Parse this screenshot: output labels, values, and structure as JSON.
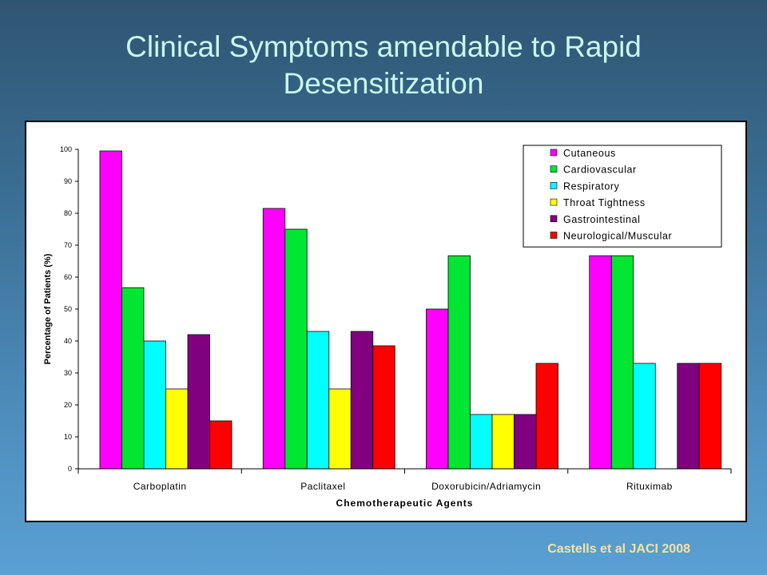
{
  "slide": {
    "title_line1": "Clinical Symptoms amendable to Rapid",
    "title_line2": "Desensitization",
    "citation": "Castells et al JACI 2008"
  },
  "chart_data": {
    "type": "bar",
    "title": "",
    "xlabel": "Chemotherapeutic Agents",
    "ylabel": "Percentage of Patients (%)",
    "ylim": [
      0,
      100
    ],
    "yticks": [
      0,
      10,
      20,
      30,
      40,
      50,
      60,
      70,
      80,
      90,
      100
    ],
    "grid": false,
    "legend_position": "top-right",
    "categories": [
      "Carboplatin",
      "Paclitaxel",
      "Doxorubicin/Adriamycin",
      "Rituximab"
    ],
    "series": [
      {
        "name": "Cutaneous",
        "color": "#ff00ff",
        "values": [
          99.5,
          81.5,
          50,
          66.7
        ]
      },
      {
        "name": "Cardiovascular",
        "color": "#00e633",
        "values": [
          56.7,
          75,
          66.7,
          66.7
        ]
      },
      {
        "name": "Respiratory",
        "color": "#00ffff",
        "values": [
          40,
          43,
          17,
          33
        ]
      },
      {
        "name": "Throat Tightness",
        "color": "#ffff00",
        "values": [
          25,
          25,
          17,
          0
        ]
      },
      {
        "name": "Gastrointestinal",
        "color": "#800080",
        "values": [
          42,
          43,
          17,
          33
        ]
      },
      {
        "name": "Neurological/Muscular",
        "color": "#ff0000",
        "values": [
          15,
          38.5,
          33,
          33
        ]
      }
    ]
  }
}
